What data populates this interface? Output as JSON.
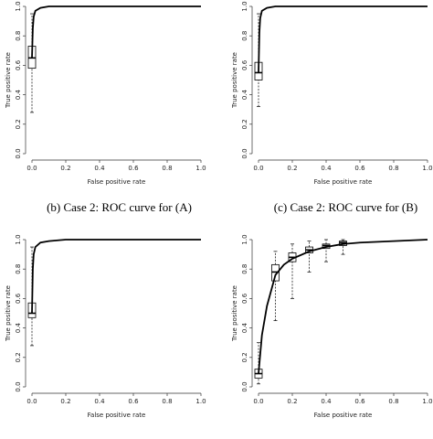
{
  "chart_data": [
    {
      "type": "line",
      "xlabel": "False positive rate",
      "ylabel": "True positive rate",
      "caption": "(b)  Case 2:  ROC curve for (A)",
      "xlim": [
        0,
        1
      ],
      "ylim": [
        0,
        1
      ],
      "xticks": [
        {
          "value": 0,
          "label": "0.0"
        },
        0.2,
        0.4,
        0.6,
        0.8,
        {
          "value": 1,
          "label": "1.0"
        }
      ],
      "yticks": [
        {
          "value": 0,
          "label": "0.0"
        },
        0.2,
        0.4,
        0.6,
        0.8,
        {
          "value": 1,
          "label": "1.0"
        }
      ],
      "series": [
        {
          "color": "#000000",
          "x": [
            0,
            0.005,
            0.01,
            0.02,
            0.05,
            0.1,
            0.2,
            1
          ],
          "values": [
            0.65,
            0.85,
            0.93,
            0.97,
            0.99,
            1,
            1,
            1
          ]
        }
      ],
      "boxes": [
        {
          "x": 0,
          "whisker_low": 0.28,
          "q1": 0.58,
          "median": 0.65,
          "q3": 0.73,
          "whisker_high": 0.95
        }
      ]
    },
    {
      "type": "line",
      "xlabel": "False positive rate",
      "ylabel": "True positive rate",
      "caption": "(c)  Case 2:  ROC curve for (B)",
      "xlim": [
        0,
        1
      ],
      "ylim": [
        0,
        1
      ],
      "xticks": [
        {
          "value": 0,
          "label": "0.0"
        },
        0.2,
        0.4,
        0.6,
        0.8,
        {
          "value": 1,
          "label": "1.0"
        }
      ],
      "yticks": [
        {
          "value": 0,
          "label": "0.0"
        },
        0.2,
        0.4,
        0.6,
        0.8,
        {
          "value": 1,
          "label": "1.0"
        }
      ],
      "series": [
        {
          "color": "#000000",
          "x": [
            0,
            0.005,
            0.01,
            0.02,
            0.05,
            0.1,
            0.2,
            1
          ],
          "values": [
            0.55,
            0.82,
            0.92,
            0.97,
            0.99,
            1,
            1,
            1
          ]
        }
      ],
      "boxes": [
        {
          "x": 0,
          "whisker_low": 0.32,
          "q1": 0.5,
          "median": 0.55,
          "q3": 0.62,
          "whisker_high": 0.95
        }
      ]
    },
    {
      "type": "line",
      "xlabel": "False positive rate",
      "ylabel": "True positive rate",
      "xlim": [
        0,
        1
      ],
      "ylim": [
        0,
        1
      ],
      "xticks": [
        {
          "value": 0,
          "label": "0.0"
        },
        0.2,
        0.4,
        0.6,
        0.8,
        {
          "value": 1,
          "label": "1.0"
        }
      ],
      "yticks": [
        {
          "value": 0,
          "label": "0.0"
        },
        0.2,
        0.4,
        0.6,
        0.8,
        {
          "value": 1,
          "label": "1.0"
        }
      ],
      "series": [
        {
          "color": "#000000",
          "x": [
            0,
            0.005,
            0.01,
            0.02,
            0.05,
            0.1,
            0.2,
            1
          ],
          "values": [
            0.5,
            0.8,
            0.9,
            0.95,
            0.98,
            0.99,
            1,
            1
          ]
        }
      ],
      "boxes": [
        {
          "x": 0,
          "whisker_low": 0.28,
          "q1": 0.47,
          "median": 0.5,
          "q3": 0.57,
          "whisker_high": 0.95
        }
      ]
    },
    {
      "type": "line",
      "xlabel": "False positive rate",
      "ylabel": "True positive rate",
      "xlim": [
        0,
        1
      ],
      "ylim": [
        0,
        1
      ],
      "xticks": [
        {
          "value": 0,
          "label": "0.0"
        },
        0.2,
        0.4,
        0.6,
        0.8,
        {
          "value": 1,
          "label": "1.0"
        }
      ],
      "yticks": [
        {
          "value": 0,
          "label": "0.0"
        },
        0.2,
        0.4,
        0.6,
        0.8,
        {
          "value": 1,
          "label": "1.0"
        }
      ],
      "series": [
        {
          "color": "#000000",
          "x": [
            0,
            0.02,
            0.05,
            0.1,
            0.15,
            0.2,
            0.3,
            0.4,
            0.5,
            0.6,
            0.8,
            1
          ],
          "values": [
            0.09,
            0.35,
            0.55,
            0.76,
            0.83,
            0.87,
            0.92,
            0.95,
            0.97,
            0.98,
            0.99,
            1
          ]
        }
      ],
      "boxes": [
        {
          "x": 0,
          "whisker_low": 0.02,
          "q1": 0.06,
          "median": 0.09,
          "q3": 0.12,
          "whisker_high": 0.3
        },
        {
          "x": 0.1,
          "whisker_low": 0.45,
          "q1": 0.72,
          "median": 0.78,
          "q3": 0.83,
          "whisker_high": 0.92
        },
        {
          "x": 0.2,
          "whisker_low": 0.6,
          "q1": 0.85,
          "median": 0.88,
          "q3": 0.91,
          "whisker_high": 0.97
        },
        {
          "x": 0.3,
          "whisker_low": 0.78,
          "q1": 0.91,
          "median": 0.93,
          "q3": 0.95,
          "whisker_high": 0.99
        },
        {
          "x": 0.4,
          "whisker_low": 0.85,
          "q1": 0.94,
          "median": 0.96,
          "q3": 0.97,
          "whisker_high": 1
        },
        {
          "x": 0.5,
          "whisker_low": 0.9,
          "q1": 0.96,
          "median": 0.98,
          "q3": 0.99,
          "whisker_high": 1
        }
      ]
    }
  ]
}
